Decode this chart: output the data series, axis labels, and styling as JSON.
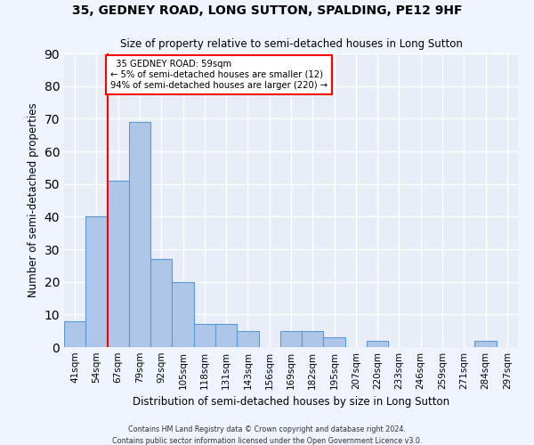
{
  "title": "35, GEDNEY ROAD, LONG SUTTON, SPALDING, PE12 9HF",
  "subtitle": "Size of property relative to semi-detached houses in Long Sutton",
  "xlabel": "Distribution of semi-detached houses by size in Long Sutton",
  "ylabel": "Number of semi-detached properties",
  "categories": [
    "41sqm",
    "54sqm",
    "67sqm",
    "79sqm",
    "92sqm",
    "105sqm",
    "118sqm",
    "131sqm",
    "143sqm",
    "156sqm",
    "169sqm",
    "182sqm",
    "195sqm",
    "207sqm",
    "220sqm",
    "233sqm",
    "246sqm",
    "259sqm",
    "271sqm",
    "284sqm",
    "297sqm"
  ],
  "values": [
    8,
    40,
    51,
    69,
    27,
    20,
    7,
    7,
    5,
    0,
    5,
    5,
    3,
    0,
    2,
    0,
    0,
    0,
    0,
    2,
    0
  ],
  "bar_color": "#aec6e8",
  "bar_edge_color": "#5b9bd5",
  "ylim": [
    0,
    90
  ],
  "yticks": [
    0,
    10,
    20,
    30,
    40,
    50,
    60,
    70,
    80,
    90
  ],
  "property_label": "35 GEDNEY ROAD: 59sqm",
  "pct_smaller": 5,
  "n_smaller": 12,
  "pct_larger": 94,
  "n_larger": 220,
  "vline_x_index": 1.5,
  "background_color": "#e8edf8",
  "grid_color": "#ffffff",
  "fig_bg_color": "#f0f4ff",
  "footer_line1": "Contains HM Land Registry data © Crown copyright and database right 2024.",
  "footer_line2": "Contains public sector information licensed under the Open Government Licence v3.0."
}
